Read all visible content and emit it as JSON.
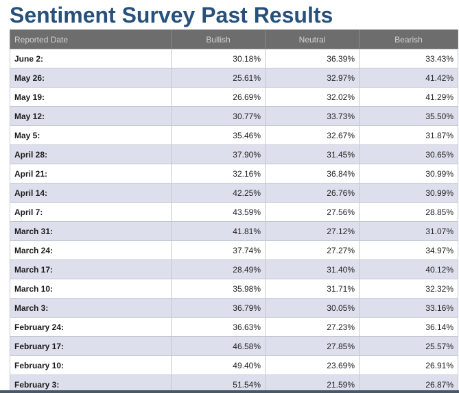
{
  "page": {
    "title": "Sentiment Survey Past Results"
  },
  "table": {
    "headers": [
      "Reported Date",
      "Bullish",
      "Neutral",
      "Bearish"
    ],
    "rows": [
      {
        "date": "June 2:",
        "bullish": "30.18%",
        "neutral": "36.39%",
        "bearish": "33.43%"
      },
      {
        "date": "May 26:",
        "bullish": "25.61%",
        "neutral": "32.97%",
        "bearish": "41.42%"
      },
      {
        "date": "May 19:",
        "bullish": "26.69%",
        "neutral": "32.02%",
        "bearish": "41.29%"
      },
      {
        "date": "May 12:",
        "bullish": "30.77%",
        "neutral": "33.73%",
        "bearish": "35.50%"
      },
      {
        "date": "May 5:",
        "bullish": "35.46%",
        "neutral": "32.67%",
        "bearish": "31.87%"
      },
      {
        "date": "April 28:",
        "bullish": "37.90%",
        "neutral": "31.45%",
        "bearish": "30.65%"
      },
      {
        "date": "April 21:",
        "bullish": "32.16%",
        "neutral": "36.84%",
        "bearish": "30.99%"
      },
      {
        "date": "April 14:",
        "bullish": "42.25%",
        "neutral": "26.76%",
        "bearish": "30.99%"
      },
      {
        "date": "April 7:",
        "bullish": "43.59%",
        "neutral": "27.56%",
        "bearish": "28.85%"
      },
      {
        "date": "March 31:",
        "bullish": "41.81%",
        "neutral": "27.12%",
        "bearish": "31.07%"
      },
      {
        "date": "March 24:",
        "bullish": "37.74%",
        "neutral": "27.27%",
        "bearish": "34.97%"
      },
      {
        "date": "March 17:",
        "bullish": "28.49%",
        "neutral": "31.40%",
        "bearish": "40.12%"
      },
      {
        "date": "March 10:",
        "bullish": "35.98%",
        "neutral": "31.71%",
        "bearish": "32.32%"
      },
      {
        "date": "March 3:",
        "bullish": "36.79%",
        "neutral": "30.05%",
        "bearish": "33.16%"
      },
      {
        "date": "February 24:",
        "bullish": "36.63%",
        "neutral": "27.23%",
        "bearish": "36.14%"
      },
      {
        "date": "February 17:",
        "bullish": "46.58%",
        "neutral": "27.85%",
        "bearish": "25.57%"
      },
      {
        "date": "February 10:",
        "bullish": "49.40%",
        "neutral": "23.69%",
        "bearish": "26.91%"
      },
      {
        "date": "February 3:",
        "bullish": "51.54%",
        "neutral": "21.59%",
        "bearish": "26.87%"
      }
    ]
  },
  "colors": {
    "title": "#27507a",
    "header_bg": "#6d6d6d",
    "header_text": "#d4d4d4",
    "row_alt_bg": "#dde0ec"
  }
}
